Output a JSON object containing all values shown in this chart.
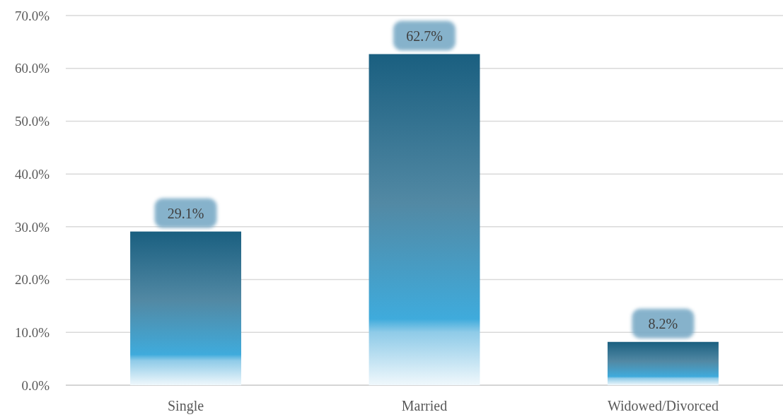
{
  "chart_data": {
    "type": "bar",
    "categories": [
      "Single",
      "Married",
      "Widowed/Divorced"
    ],
    "values": [
      29.1,
      62.7,
      8.2
    ],
    "value_labels": [
      "29.1%",
      "62.7%",
      "8.2%"
    ],
    "color": "#1a5f80",
    "ylim": [
      0,
      70
    ],
    "yticks": [
      {
        "value": 0,
        "label": "0.0%"
      },
      {
        "value": 10,
        "label": "10.0%"
      },
      {
        "value": 20,
        "label": "20.0%"
      },
      {
        "value": 30,
        "label": "30.0%"
      },
      {
        "value": 40,
        "label": "40.0%"
      },
      {
        "value": 50,
        "label": "50.0%"
      },
      {
        "value": 60,
        "label": "60.0%"
      },
      {
        "value": 70,
        "label": "70.0%"
      }
    ],
    "grid": "y"
  }
}
